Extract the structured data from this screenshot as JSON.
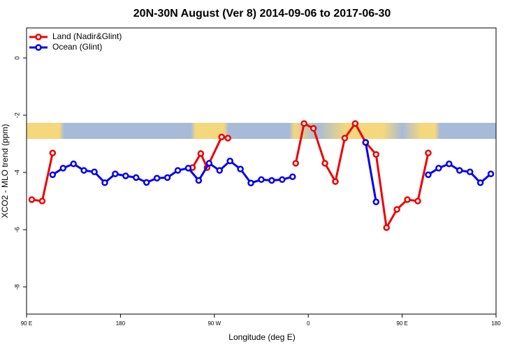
{
  "chart_data": {
    "type": "line",
    "title": "20N-30N August (Ver 8)   2014-09-06 to 2017-06-30",
    "x_label": "Longitude (deg E)",
    "y_label": "XCO2 - MLO trend (ppm)",
    "xlim": [
      90,
      540
    ],
    "ylim": [
      -8.95,
      1.05
    ],
    "xticks": [
      {
        "value": 90,
        "label": "90 E"
      },
      180,
      {
        "value": 270,
        "label": "90 W"
      },
      {
        "value": 360,
        "label": "0"
      },
      {
        "value": 450,
        "label": "90 E"
      },
      {
        "value": 540,
        "label": "180"
      }
    ],
    "yticks": [
      0,
      -2,
      -4,
      -6,
      -8
    ],
    "legend": "top-left",
    "series": [
      {
        "name": "Land (Nadir&Glint)",
        "color": "#ee0000",
        "x": [
          95,
          105,
          115,
          null,
          249,
          257,
          263,
          277,
          283,
          null,
          348,
          356,
          365,
          376,
          386,
          395,
          405,
          415,
          425,
          435,
          445,
          455,
          465,
          475
        ],
        "values": [
          -4.95,
          -5.0,
          -3.32,
          null,
          -3.83,
          -3.34,
          -3.83,
          -2.76,
          -2.8,
          null,
          -3.68,
          -2.29,
          -2.46,
          -3.68,
          -4.32,
          -2.8,
          -2.29,
          -2.95,
          -3.37,
          -5.93,
          -5.29,
          -4.95,
          -5.0,
          -3.32
        ]
      },
      {
        "name": "Ocean (Glint)",
        "color": "#0000ee",
        "x": [
          115,
          125,
          135,
          145,
          155,
          165,
          175,
          185,
          195,
          205,
          215,
          225,
          235,
          245,
          255,
          265,
          275,
          285,
          295,
          305,
          315,
          325,
          335,
          345,
          null,
          415,
          425,
          null,
          475,
          485,
          495,
          505,
          515,
          525,
          535
        ],
        "values": [
          -4.08,
          -3.85,
          -3.7,
          -3.93,
          -3.98,
          -4.36,
          -4.05,
          -4.12,
          -4.18,
          -4.35,
          -4.2,
          -4.18,
          -3.93,
          -3.85,
          -4.28,
          -3.68,
          -3.93,
          -3.6,
          -3.88,
          -4.37,
          -4.25,
          -4.28,
          -4.25,
          -4.15,
          null,
          -2.95,
          -5.03,
          null,
          -4.08,
          -3.85,
          -3.7,
          -3.93,
          -3.98,
          -4.36,
          -4.05
        ]
      }
    ]
  }
}
